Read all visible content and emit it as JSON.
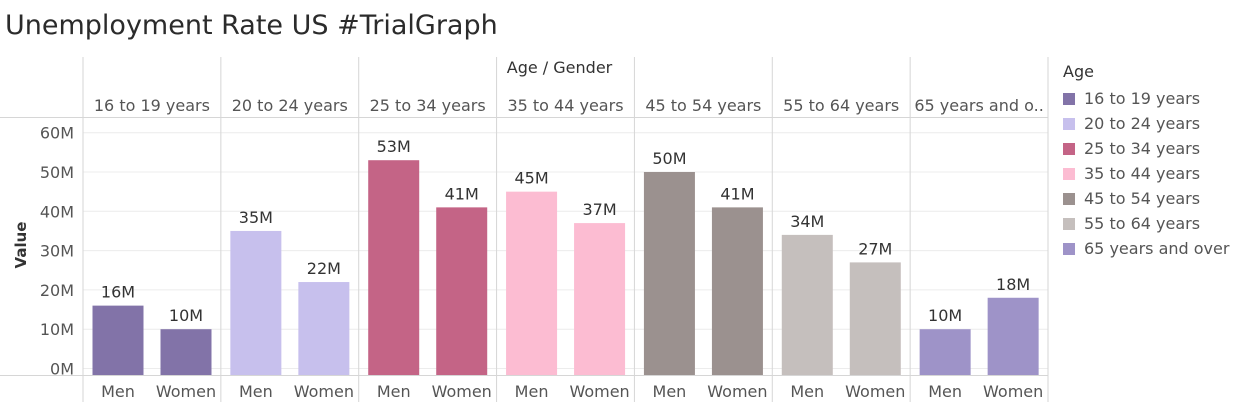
{
  "page_title": "Unemployment Rate US #TrialGraph",
  "chart_data": {
    "type": "bar",
    "title": "Unemployment Rate US #TrialGraph",
    "column_header": "Age / Gender",
    "ylabel": "Value",
    "ylim": [
      0,
      63
    ],
    "yticks": [
      0,
      10,
      20,
      30,
      40,
      50,
      60
    ],
    "ytick_labels": [
      "0M",
      "10M",
      "20M",
      "30M",
      "40M",
      "50M",
      "60M"
    ],
    "grid": true,
    "groups": [
      {
        "label": "16 to 19 years",
        "color": "#8273a8",
        "men": 16,
        "women": 10,
        "men_label": "16M",
        "women_label": "10M"
      },
      {
        "label": "20 to 24 years",
        "color": "#c7c0ed",
        "men": 35,
        "women": 22,
        "men_label": "35M",
        "women_label": "22M"
      },
      {
        "label": "25 to 34 years",
        "color": "#c46486",
        "men": 53,
        "women": 41,
        "men_label": "53M",
        "women_label": "41M"
      },
      {
        "label": "35 to 44 years",
        "color": "#fcbcd2",
        "men": 45,
        "women": 37,
        "men_label": "45M",
        "women_label": "37M"
      },
      {
        "label": "45 to 54 years",
        "color": "#9b918f",
        "men": 50,
        "women": 41,
        "men_label": "50M",
        "women_label": "41M"
      },
      {
        "label": "55 to 64 years",
        "color": "#c5bfbd",
        "men": 34,
        "women": 27,
        "men_label": "34M",
        "women_label": "27M"
      },
      {
        "label": "65 years and o..",
        "color": "#9e93c8",
        "men": 10,
        "women": 18,
        "men_label": "10M",
        "women_label": "18M"
      }
    ],
    "subcategories": [
      "Men",
      "Women"
    ]
  },
  "legend": {
    "title": "Age",
    "placement": "right",
    "items": [
      {
        "label": "16 to 19 years",
        "color": "#8273a8"
      },
      {
        "label": "20 to 24 years",
        "color": "#c7c0ed"
      },
      {
        "label": "25 to 34 years",
        "color": "#c46486"
      },
      {
        "label": "35 to 44 years",
        "color": "#fcbcd2"
      },
      {
        "label": "45 to 54 years",
        "color": "#9b918f"
      },
      {
        "label": "55 to 64 years",
        "color": "#c5bfbd"
      },
      {
        "label": "65 years and over",
        "color": "#9e93c8"
      }
    ]
  }
}
